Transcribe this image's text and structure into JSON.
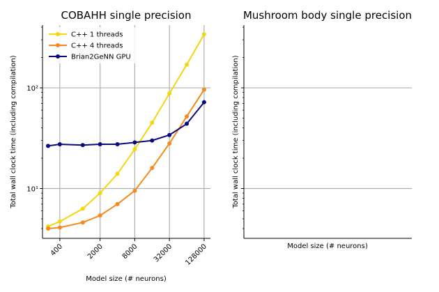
{
  "chart_data": [
    {
      "type": "line",
      "title": "COBAHH single precision",
      "xlabel": "Model size (# neurons)",
      "ylabel": "Total wall clock time (including compilation)",
      "xscale": "log",
      "yscale": "log",
      "xlim": [
        200,
        165000
      ],
      "ylim": [
        3.2,
        420
      ],
      "xticks": [
        400,
        2000,
        8000,
        32000,
        128000
      ],
      "xtick_labels": [
        "400",
        "2000",
        "8000",
        "32000",
        "128000"
      ],
      "yticks": [
        10,
        100
      ],
      "ytick_labels": [
        "10¹",
        "10²"
      ],
      "grid": true,
      "legend_position": "top-left",
      "colors": [
        "#f5d60f",
        "#f58a1f",
        "#0a0a80"
      ],
      "x": [
        250,
        400,
        1000,
        2000,
        4000,
        8000,
        16000,
        32000,
        64000,
        128000
      ],
      "series": [
        {
          "name": "C++  1 threads",
          "color": "#f5d60f",
          "values": [
            4.2,
            4.7,
            6.3,
            9.0,
            14.0,
            24.5,
            45.0,
            88.0,
            170.0,
            340.0
          ]
        },
        {
          "name": "C++  4 threads",
          "color": "#f58a1f",
          "values": [
            4.0,
            4.1,
            4.6,
            5.4,
            7.0,
            9.5,
            16.0,
            28.0,
            52.0,
            96.0
          ]
        },
        {
          "name": "Brian2GeNN GPU",
          "color": "#0a0a80",
          "values": [
            26.5,
            27.5,
            27.0,
            27.5,
            27.5,
            28.7,
            30.0,
            34.0,
            44.0,
            72.0
          ]
        }
      ]
    },
    {
      "type": "line",
      "title": "Mushroom body single precision",
      "xlabel": "Model size (# neurons)",
      "ylabel": "Total wall clock time (including compilation)",
      "yscale": "log",
      "ylim": [
        3.2,
        420
      ],
      "yticks": [
        10,
        100
      ],
      "grid": true,
      "series": []
    }
  ]
}
